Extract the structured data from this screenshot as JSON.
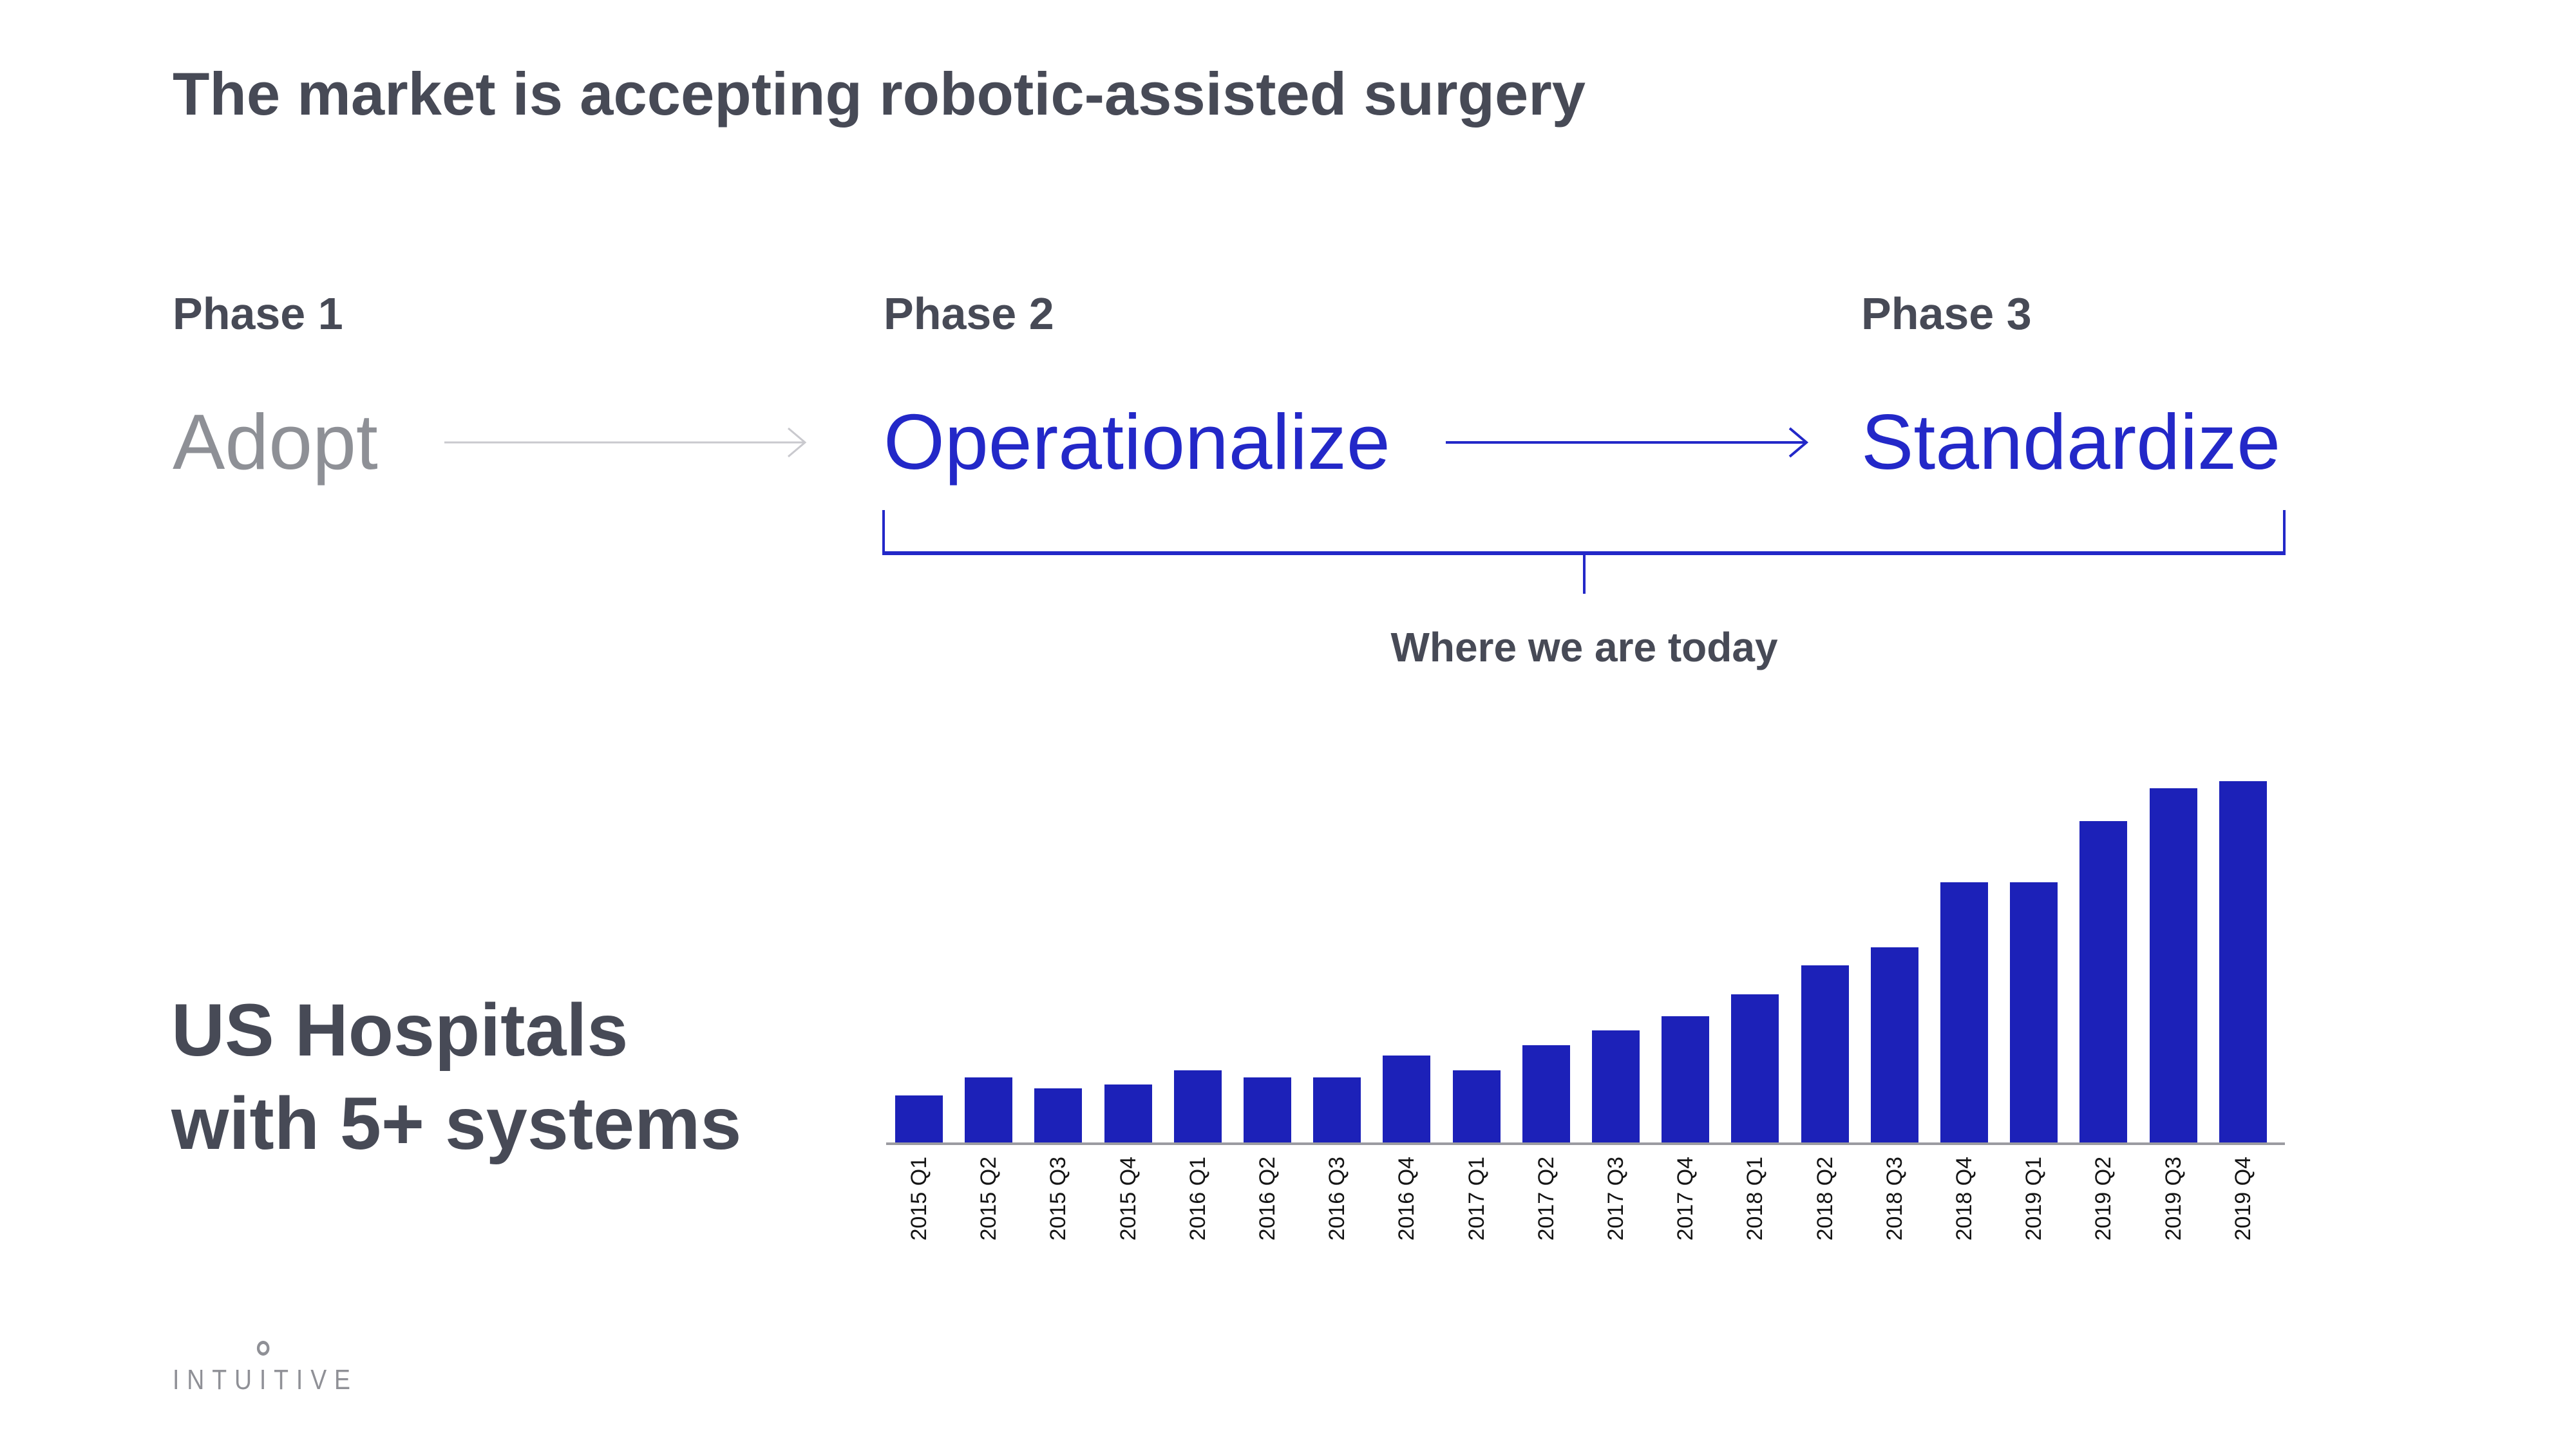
{
  "slide": {
    "title": "The market is accepting robotic-assisted surgery",
    "phases": [
      {
        "label": "Phase 1",
        "word": "Adopt"
      },
      {
        "label": "Phase 2",
        "word": "Operationalize"
      },
      {
        "label": "Phase 3",
        "word": "Standardize"
      }
    ],
    "bracket_caption": "Where we are today",
    "chart_caption": {
      "line1": "US Hospitals",
      "line2": "with 5+ systems"
    },
    "logo": {
      "prefix": "INTU",
      "ring_letter": "I",
      "suffix": "TIVE",
      "full": "INTUITIVE"
    },
    "colors": {
      "heading_slate": "#474a56",
      "accent_blue": "#2328c8",
      "bar_blue": "#1c21b8",
      "muted_gray": "#8e9096",
      "arrow_gray": "#c9c9ce",
      "axis_gray": "#9b9ba1",
      "logo_gray": "#8f9096",
      "background": "#ffffff"
    }
  },
  "chart_data": {
    "type": "bar",
    "title": "US Hospitals with 5+ systems",
    "categories": [
      "2015 Q1",
      "2015 Q2",
      "2015 Q3",
      "2015 Q4",
      "2016 Q1",
      "2016 Q2",
      "2016 Q3",
      "2016 Q4",
      "2017 Q1",
      "2017 Q2",
      "2017 Q3",
      "2017 Q4",
      "2018 Q1",
      "2018 Q2",
      "2018 Q3",
      "2018 Q4",
      "2019 Q1",
      "2019 Q2",
      "2019 Q3",
      "2019 Q4"
    ],
    "values": [
      13,
      18,
      15,
      16,
      20,
      18,
      18,
      24,
      20,
      27,
      31,
      35,
      41,
      49,
      54,
      72,
      72,
      89,
      98,
      100
    ],
    "value_note": "relative bar heights; tallest bar (2019 Q4) = 100; no numeric y-axis shown in chart",
    "xlabel": "",
    "ylabel": "",
    "ylim": [
      0,
      100
    ],
    "grid": false,
    "legend": "none",
    "bar_color": "#1c21b8"
  }
}
